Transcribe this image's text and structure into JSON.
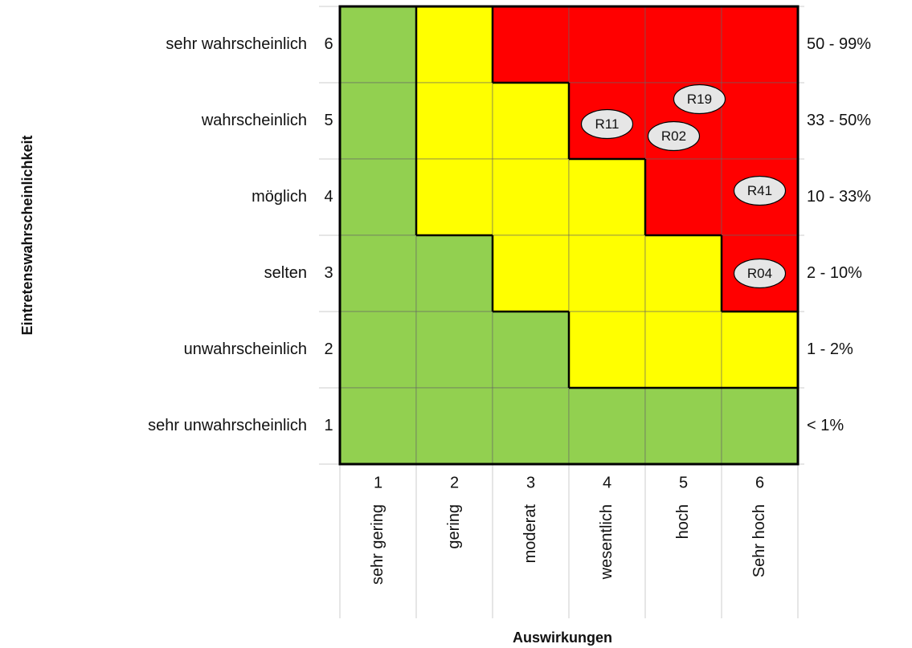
{
  "y_axis_title": "Eintretenswahrscheinlichkeit",
  "x_axis_title": "Auswirkungen",
  "colors": {
    "G": "#92d050",
    "Y": "#ffff00",
    "R": "#ff0000"
  },
  "rows": [
    {
      "label": "sehr wahrscheinlich",
      "level": "6",
      "range": "50 - 99%",
      "cells": [
        "G",
        "Y",
        "R",
        "R",
        "R",
        "R"
      ]
    },
    {
      "label": "wahrscheinlich",
      "level": "5",
      "range": "33 - 50%",
      "cells": [
        "G",
        "Y",
        "Y",
        "R",
        "R",
        "R"
      ]
    },
    {
      "label": "möglich",
      "level": "4",
      "range": "10 - 33%",
      "cells": [
        "G",
        "Y",
        "Y",
        "Y",
        "R",
        "R"
      ]
    },
    {
      "label": "selten",
      "level": "3",
      "range": "2 - 10%",
      "cells": [
        "G",
        "G",
        "Y",
        "Y",
        "Y",
        "R"
      ]
    },
    {
      "label": "unwahrscheinlich",
      "level": "2",
      "range": "1 - 2%",
      "cells": [
        "G",
        "G",
        "G",
        "Y",
        "Y",
        "Y"
      ]
    },
    {
      "label": "sehr unwahrscheinlich",
      "level": "1",
      "range": "< 1%",
      "cells": [
        "G",
        "G",
        "G",
        "G",
        "G",
        "G"
      ]
    }
  ],
  "columns": [
    {
      "level": "1",
      "label": "sehr gering"
    },
    {
      "level": "2",
      "label": "gering"
    },
    {
      "level": "3",
      "label": "moderat"
    },
    {
      "level": "4",
      "label": "wesentlich"
    },
    {
      "level": "5",
      "label": "hoch"
    },
    {
      "level": "6",
      "label": "Sehr hoch"
    }
  ],
  "risks": [
    {
      "id": "R11",
      "row": 1,
      "col": 3
    },
    {
      "id": "R19",
      "row": 1,
      "col": 4
    },
    {
      "id": "R02",
      "row": 1,
      "col": 4
    },
    {
      "id": "R41",
      "row": 2,
      "col": 5
    },
    {
      "id": "R04",
      "row": 3,
      "col": 5
    }
  ]
}
